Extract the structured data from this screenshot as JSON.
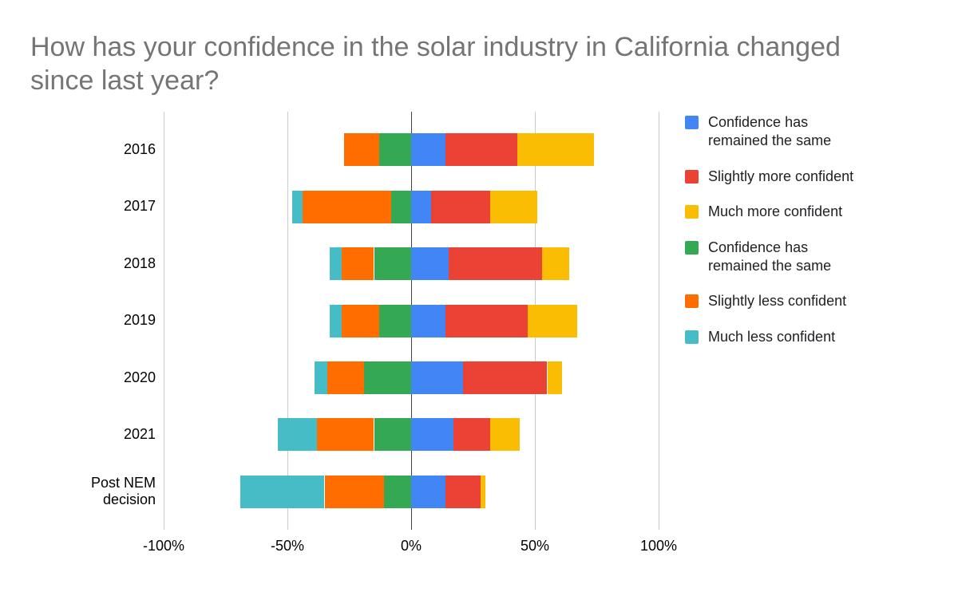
{
  "title": "How has your confidence in the solar industry in California changed since last year?",
  "chart_data": {
    "type": "bar",
    "variant": "diverging-stacked-horizontal",
    "title": "How has your confidence in the solar industry in California changed since last year?",
    "categories": [
      "2016",
      "2017",
      "2018",
      "2019",
      "2020",
      "2021",
      "Post NEM decision"
    ],
    "x_ticks": [
      "-100%",
      "-50%",
      "0%",
      "50%",
      "100%"
    ],
    "x_tick_values": [
      -100,
      -50,
      0,
      50,
      100
    ],
    "xlim": [
      -100,
      100
    ],
    "unit": "percent",
    "grid": true,
    "legend_position": "right",
    "series": [
      {
        "name": "Much less confident",
        "color": "#46BDC6",
        "side": "negative",
        "values": [
          0,
          4,
          5,
          5,
          5,
          16,
          34
        ]
      },
      {
        "name": "Slightly less confident",
        "color": "#FF6D01",
        "side": "negative",
        "values": [
          14,
          36,
          13,
          15,
          15,
          23,
          24
        ]
      },
      {
        "name": "Confidence has remained the same",
        "color": "#34A853",
        "side": "negative",
        "values": [
          13,
          8,
          15,
          13,
          19,
          15,
          11
        ]
      },
      {
        "name": "Confidence has remained the same",
        "color": "#4285F4",
        "side": "positive",
        "values": [
          14,
          8,
          15,
          14,
          21,
          17,
          14
        ]
      },
      {
        "name": "Slightly more confident",
        "color": "#EA4335",
        "side": "positive",
        "values": [
          29,
          24,
          38,
          33,
          34,
          15,
          14
        ]
      },
      {
        "name": "Much more confident",
        "color": "#FBBC04",
        "side": "positive",
        "values": [
          31,
          19,
          11,
          20,
          6,
          12,
          2
        ]
      }
    ],
    "legend": [
      {
        "label": "Confidence has remained the same",
        "color": "#4285F4"
      },
      {
        "label": "Slightly more confident",
        "color": "#EA4335"
      },
      {
        "label": "Much more confident",
        "color": "#FBBC04"
      },
      {
        "label": "Confidence has remained the same",
        "color": "#34A853"
      },
      {
        "label": "Slightly less confident",
        "color": "#FF6D01"
      },
      {
        "label": "Much less confident",
        "color": "#46BDC6"
      }
    ]
  }
}
